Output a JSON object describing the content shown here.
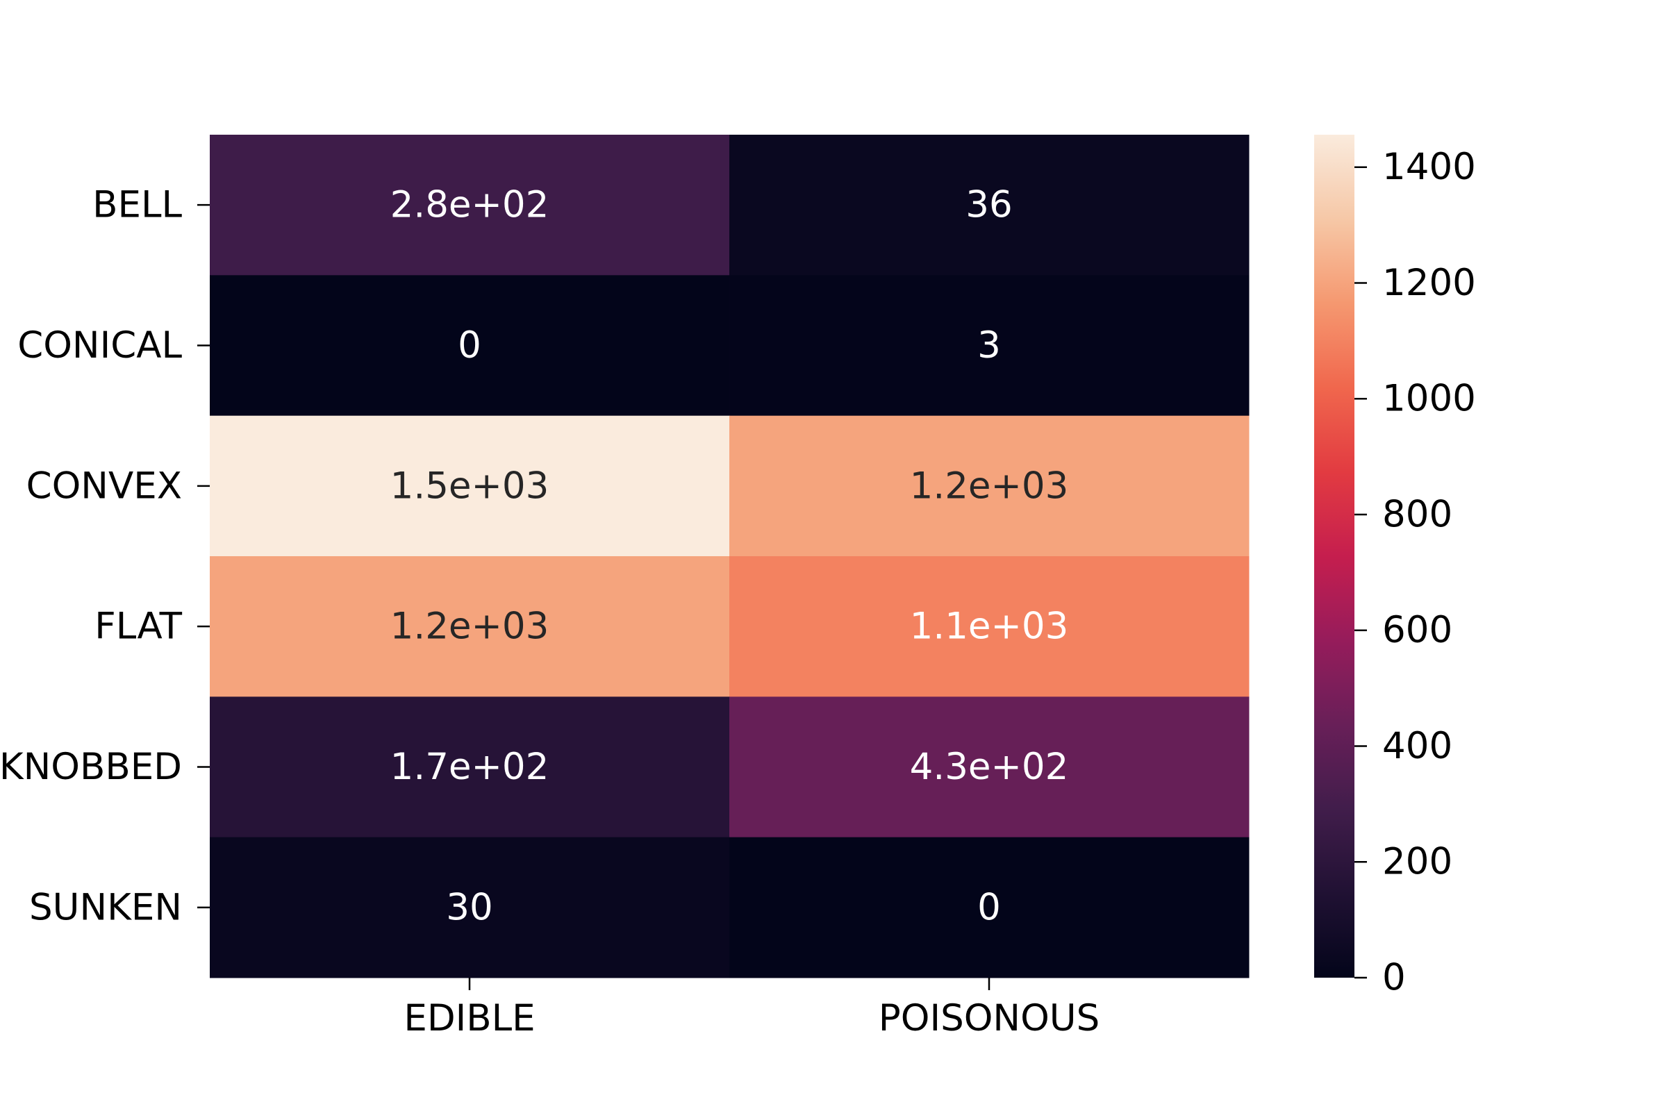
{
  "chart_data": {
    "type": "heatmap",
    "title": "",
    "xlabel": "",
    "ylabel": "",
    "columns": [
      "EDIBLE",
      "POISONOUS"
    ],
    "rows": [
      "BELL",
      "CONICAL",
      "CONVEX",
      "FLAT",
      "KNOBBED",
      "SUNKEN"
    ],
    "values": [
      [
        280,
        36
      ],
      [
        0,
        3
      ],
      [
        1500,
        1200
      ],
      [
        1200,
        1100
      ],
      [
        170,
        430
      ],
      [
        30,
        0
      ]
    ],
    "labels": [
      [
        "2.8e+02",
        "36"
      ],
      [
        "0",
        "3"
      ],
      [
        "1.5e+03",
        "1.2e+03"
      ],
      [
        "1.2e+03",
        "1.1e+03"
      ],
      [
        "1.7e+02",
        "4.3e+02"
      ],
      [
        "30",
        "0"
      ]
    ],
    "colorbar": {
      "range": [
        0,
        1456
      ],
      "ticks": [
        0,
        200,
        400,
        600,
        800,
        1000,
        1200,
        1400
      ],
      "tick_labels": [
        "0",
        "200",
        "400",
        "600",
        "800",
        "1000",
        "1200",
        "1400"
      ],
      "colormap": "rocket"
    },
    "grid": false
  }
}
